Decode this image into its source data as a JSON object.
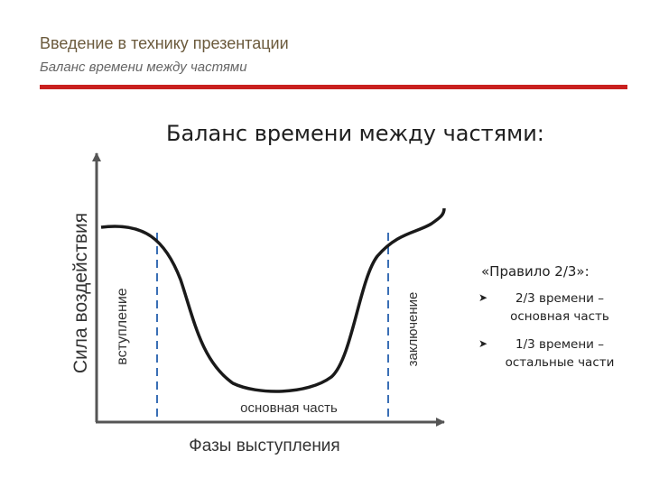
{
  "header": {
    "title": "Введение в технику презентации",
    "subtitle": "Баланс времени между частями",
    "rule_color": "#c9201f"
  },
  "slide": {
    "title": "Баланс времени между частями:"
  },
  "diagram": {
    "y_axis_label": "Сила воздействия",
    "x_axis_label": "Фазы выступления",
    "phases": {
      "intro": "вступление",
      "body": "основная часть",
      "conclusion": "заключение"
    },
    "dashed_line_color": "#3a6fb5",
    "curve_color": "#1a1a1a"
  },
  "rule": {
    "heading": "«Правило 2/3»:",
    "bullet_icon": "arrow-right-icon",
    "items": [
      "2/3 времени – основная часть",
      "1/3 времени – остальные части"
    ]
  }
}
